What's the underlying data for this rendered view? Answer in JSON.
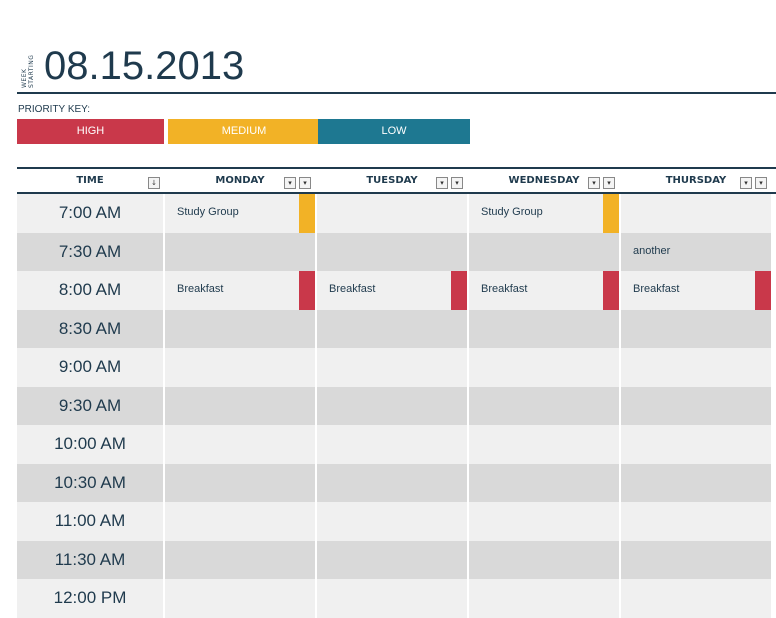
{
  "header": {
    "week_label": [
      "WEEK",
      "STARTING"
    ],
    "date": "08.15.2013"
  },
  "priority_key": {
    "label": "PRIORITY KEY:",
    "levels": [
      {
        "name": "HIGH",
        "color": "#c9384a"
      },
      {
        "name": "MEDIUM",
        "color": "#f2b226"
      },
      {
        "name": "LOW",
        "color": "#1e7891"
      }
    ]
  },
  "schedule": {
    "columns": [
      "TIME",
      "MONDAY",
      "TUESDAY",
      "WEDNESDAY",
      "THURSDAY"
    ],
    "rows": [
      {
        "time": "7:00 AM",
        "cells": [
          {
            "text": "Study Group",
            "priority": 1
          },
          null,
          {
            "text": "Study Group",
            "priority": 1
          },
          null
        ]
      },
      {
        "time": "7:30 AM",
        "cells": [
          null,
          null,
          null,
          {
            "text": "another"
          }
        ]
      },
      {
        "time": "8:00 AM",
        "cells": [
          {
            "text": "Breakfast",
            "priority": 0
          },
          {
            "text": "Breakfast",
            "priority": 0
          },
          {
            "text": "Breakfast",
            "priority": 0
          },
          {
            "text": "Breakfast",
            "priority": 0
          }
        ]
      },
      {
        "time": "8:30 AM",
        "cells": [
          null,
          null,
          null,
          null
        ]
      },
      {
        "time": "9:00 AM",
        "cells": [
          null,
          null,
          null,
          null
        ]
      },
      {
        "time": "9:30 AM",
        "cells": [
          null,
          null,
          null,
          null
        ]
      },
      {
        "time": "10:00 AM",
        "cells": [
          null,
          null,
          null,
          null
        ]
      },
      {
        "time": "10:30 AM",
        "cells": [
          null,
          null,
          null,
          null
        ]
      },
      {
        "time": "11:00 AM",
        "cells": [
          null,
          null,
          null,
          null
        ]
      },
      {
        "time": "11:30 AM",
        "cells": [
          null,
          null,
          null,
          null
        ]
      },
      {
        "time": "12:00 PM",
        "cells": [
          null,
          null,
          null,
          null
        ]
      }
    ]
  }
}
